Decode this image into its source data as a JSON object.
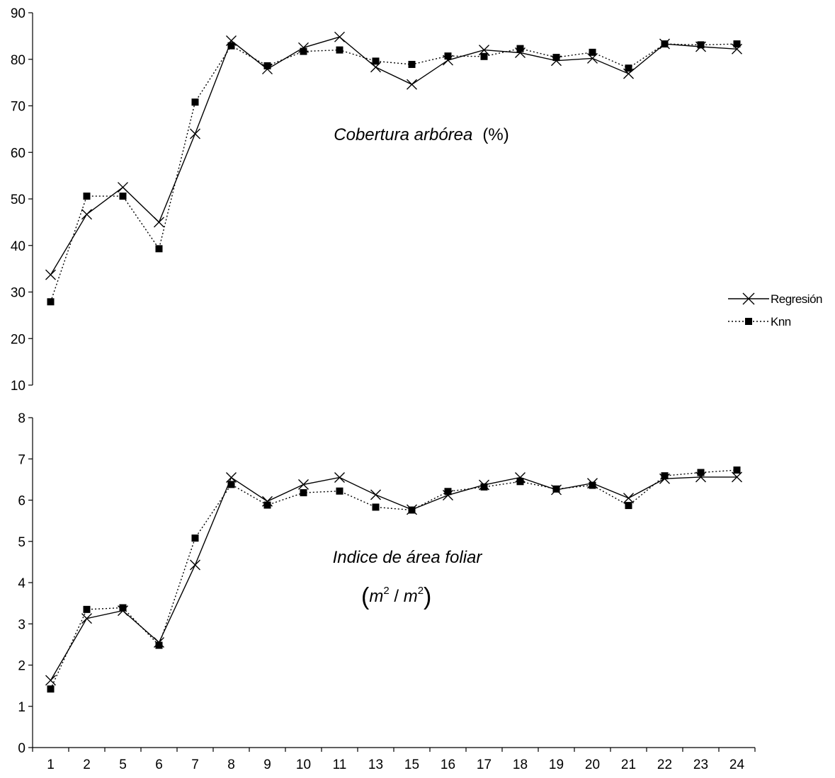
{
  "chart_data": [
    {
      "type": "line",
      "title": "Cobertura arbórea",
      "unit_label": "(%)",
      "categories": [
        "1",
        "2",
        "5",
        "6",
        "7",
        "8",
        "9",
        "10",
        "11",
        "13",
        "15",
        "16",
        "17",
        "18",
        "19",
        "20",
        "21",
        "22",
        "23",
        "24"
      ],
      "ylim": [
        10,
        90
      ],
      "yticks": [
        "10",
        "20",
        "30",
        "40",
        "50",
        "60",
        "70",
        "80",
        "90"
      ],
      "grid": false,
      "legend": "right",
      "series": [
        {
          "name": "Regresión",
          "marker": "x",
          "line": "solid",
          "values": [
            33.7,
            46.7,
            52.5,
            45.0,
            64.0,
            84.0,
            77.9,
            82.5,
            84.8,
            78.3,
            74.6,
            79.8,
            82.0,
            81.4,
            79.7,
            80.2,
            76.9,
            83.3,
            82.7,
            82.2
          ]
        },
        {
          "name": "Knn",
          "marker": "square",
          "line": "dotted",
          "values": [
            27.9,
            50.6,
            50.6,
            39.3,
            70.8,
            82.9,
            78.6,
            81.7,
            82.0,
            79.6,
            78.9,
            80.7,
            80.6,
            82.3,
            80.4,
            81.5,
            78.1,
            83.3,
            83.1,
            83.3
          ]
        }
      ]
    },
    {
      "type": "line",
      "title": "Indice de área foliar",
      "unit_label": {
        "open": "(",
        "num": "m",
        "num_sup": "2",
        "sep": " / ",
        "den": "m",
        "den_sup": "2",
        "close": ")"
      },
      "categories": [
        "1",
        "2",
        "5",
        "6",
        "7",
        "8",
        "9",
        "10",
        "11",
        "13",
        "15",
        "16",
        "17",
        "18",
        "19",
        "20",
        "21",
        "22",
        "23",
        "24"
      ],
      "ylim": [
        0,
        8
      ],
      "yticks": [
        "0",
        "1",
        "2",
        "3",
        "4",
        "5",
        "6",
        "7",
        "8"
      ],
      "grid": false,
      "legend": "right",
      "series": [
        {
          "name": "Regresión",
          "marker": "x",
          "line": "solid",
          "values": [
            1.63,
            3.13,
            3.32,
            2.55,
            4.43,
            6.55,
            5.97,
            6.38,
            6.55,
            6.13,
            5.77,
            6.12,
            6.37,
            6.55,
            6.25,
            6.41,
            6.05,
            6.52,
            6.56,
            6.56
          ]
        },
        {
          "name": "Knn",
          "marker": "square",
          "line": "dotted",
          "values": [
            1.42,
            3.35,
            3.39,
            2.48,
            5.08,
            6.38,
            5.88,
            6.18,
            6.22,
            5.83,
            5.76,
            6.21,
            6.32,
            6.45,
            6.27,
            6.36,
            5.87,
            6.59,
            6.67,
            6.73
          ]
        }
      ]
    }
  ],
  "legend": {
    "items": [
      {
        "label": "Regresión",
        "marker": "x",
        "line": "solid"
      },
      {
        "label": "Knn",
        "marker": "square",
        "line": "dotted"
      }
    ]
  },
  "colors": {
    "line": "#000000",
    "background": "#ffffff"
  }
}
